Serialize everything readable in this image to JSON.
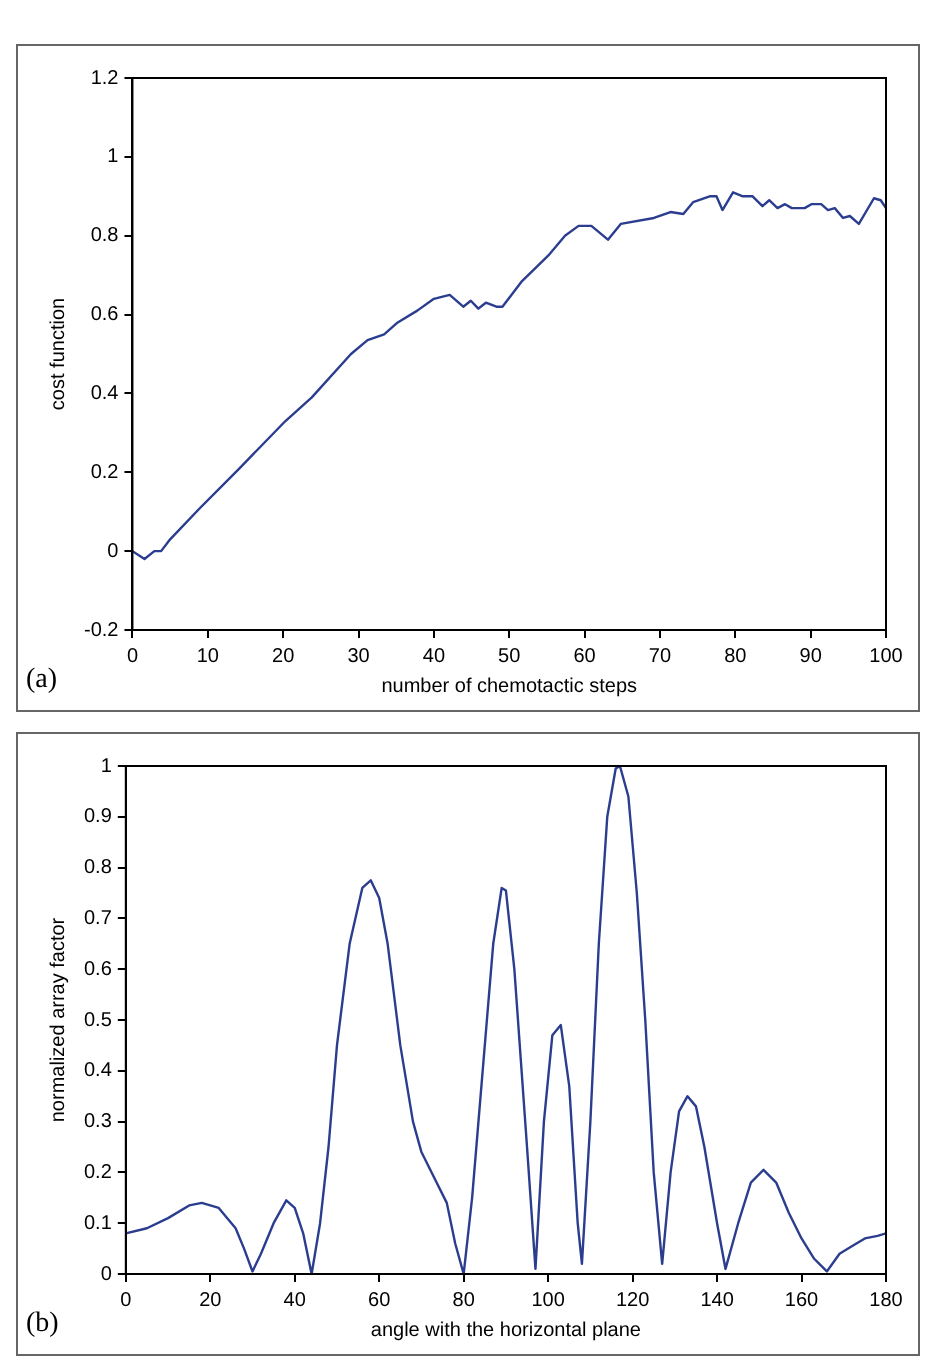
{
  "chart_data": [
    {
      "type": "line",
      "xlabel": "number of chemotactic steps",
      "ylabel": "cost function",
      "annotations": [
        "(a)"
      ],
      "x": [
        0,
        1.6,
        2.9,
        3.8,
        5,
        9,
        14.2,
        20.3,
        23.8,
        29,
        31.2,
        33.4,
        35.2,
        37.8,
        40,
        42.1,
        43.9,
        44.9,
        45.9,
        46.9,
        48.3,
        49.1,
        51.7,
        55.2,
        57.4,
        59.2,
        60.9,
        63.1,
        64.8,
        69.2,
        71.4,
        73.1,
        74.4,
        76.6,
        77.5,
        78.3,
        79.7,
        81,
        82.3,
        83.6,
        84.5,
        85.6,
        86.6,
        87.5,
        89.2,
        90.1,
        91.4,
        92.3,
        93.2,
        94.3,
        95.2,
        96.4,
        98.4,
        99.3,
        100
      ],
      "series": [
        {
          "color": "#2b3d8f",
          "values": [
            0,
            -0.02,
            0,
            0,
            0.03,
            0.11,
            0.21,
            0.33,
            0.39,
            0.5,
            0.535,
            0.55,
            0.58,
            0.61,
            0.64,
            0.65,
            0.62,
            0.635,
            0.615,
            0.63,
            0.62,
            0.62,
            0.685,
            0.75,
            0.8,
            0.825,
            0.825,
            0.79,
            0.83,
            0.845,
            0.86,
            0.855,
            0.885,
            0.9,
            0.9,
            0.865,
            0.91,
            0.9,
            0.9,
            0.875,
            0.89,
            0.87,
            0.88,
            0.87,
            0.87,
            0.88,
            0.88,
            0.865,
            0.87,
            0.845,
            0.85,
            0.83,
            0.895,
            0.89,
            0.87
          ]
        }
      ],
      "xlim": [
        0,
        100
      ],
      "xticks": [
        0,
        10,
        20,
        30,
        40,
        50,
        60,
        70,
        80,
        90,
        100
      ],
      "ylim": [
        -0.2,
        1.2
      ],
      "yticks": [
        -0.2,
        0,
        0.2,
        0.4,
        0.6,
        0.8,
        1,
        1.2
      ],
      "grid": false,
      "legend": false
    },
    {
      "type": "line",
      "xlabel": "angle with the horizontal plane",
      "ylabel": "normalized array factor",
      "annotations": [
        "(b)"
      ],
      "x": [
        0,
        5,
        10,
        15,
        18,
        22,
        26,
        28,
        30,
        32,
        35,
        38,
        40,
        42,
        44,
        46,
        48,
        50,
        53,
        56,
        58,
        60,
        62,
        65,
        68,
        70,
        73,
        76,
        78,
        80,
        82,
        85,
        87,
        89,
        90,
        92,
        95,
        97,
        99,
        101,
        103,
        105,
        107,
        108,
        110,
        112,
        114,
        116,
        117,
        119,
        121,
        123,
        125,
        127,
        129,
        131,
        133,
        135,
        137,
        140,
        142,
        145,
        148,
        151,
        154,
        157,
        160,
        163,
        166,
        169,
        172,
        175,
        178,
        180
      ],
      "series": [
        {
          "color": "#2b3d8f",
          "values": [
            0.08,
            0.09,
            0.11,
            0.135,
            0.14,
            0.13,
            0.09,
            0.05,
            0.005,
            0.04,
            0.1,
            0.145,
            0.13,
            0.08,
            0,
            0.1,
            0.25,
            0.45,
            0.65,
            0.76,
            0.775,
            0.74,
            0.65,
            0.45,
            0.3,
            0.24,
            0.19,
            0.14,
            0.06,
            0,
            0.15,
            0.45,
            0.65,
            0.76,
            0.755,
            0.6,
            0.25,
            0.01,
            0.3,
            0.47,
            0.49,
            0.37,
            0.1,
            0.02,
            0.3,
            0.65,
            0.9,
            0.995,
            1,
            0.94,
            0.75,
            0.5,
            0.2,
            0.02,
            0.2,
            0.32,
            0.35,
            0.33,
            0.25,
            0.1,
            0.01,
            0.1,
            0.18,
            0.205,
            0.18,
            0.12,
            0.07,
            0.03,
            0.005,
            0.04,
            0.055,
            0.07,
            0.075,
            0.08
          ]
        }
      ],
      "xlim": [
        0,
        180
      ],
      "xticks": [
        0,
        20,
        40,
        60,
        80,
        100,
        120,
        140,
        160,
        180
      ],
      "ylim": [
        0,
        1
      ],
      "yticks": [
        0,
        0.1,
        0.2,
        0.3,
        0.4,
        0.5,
        0.6,
        0.7,
        0.8,
        0.9,
        1
      ],
      "grid": false,
      "legend": false
    }
  ]
}
